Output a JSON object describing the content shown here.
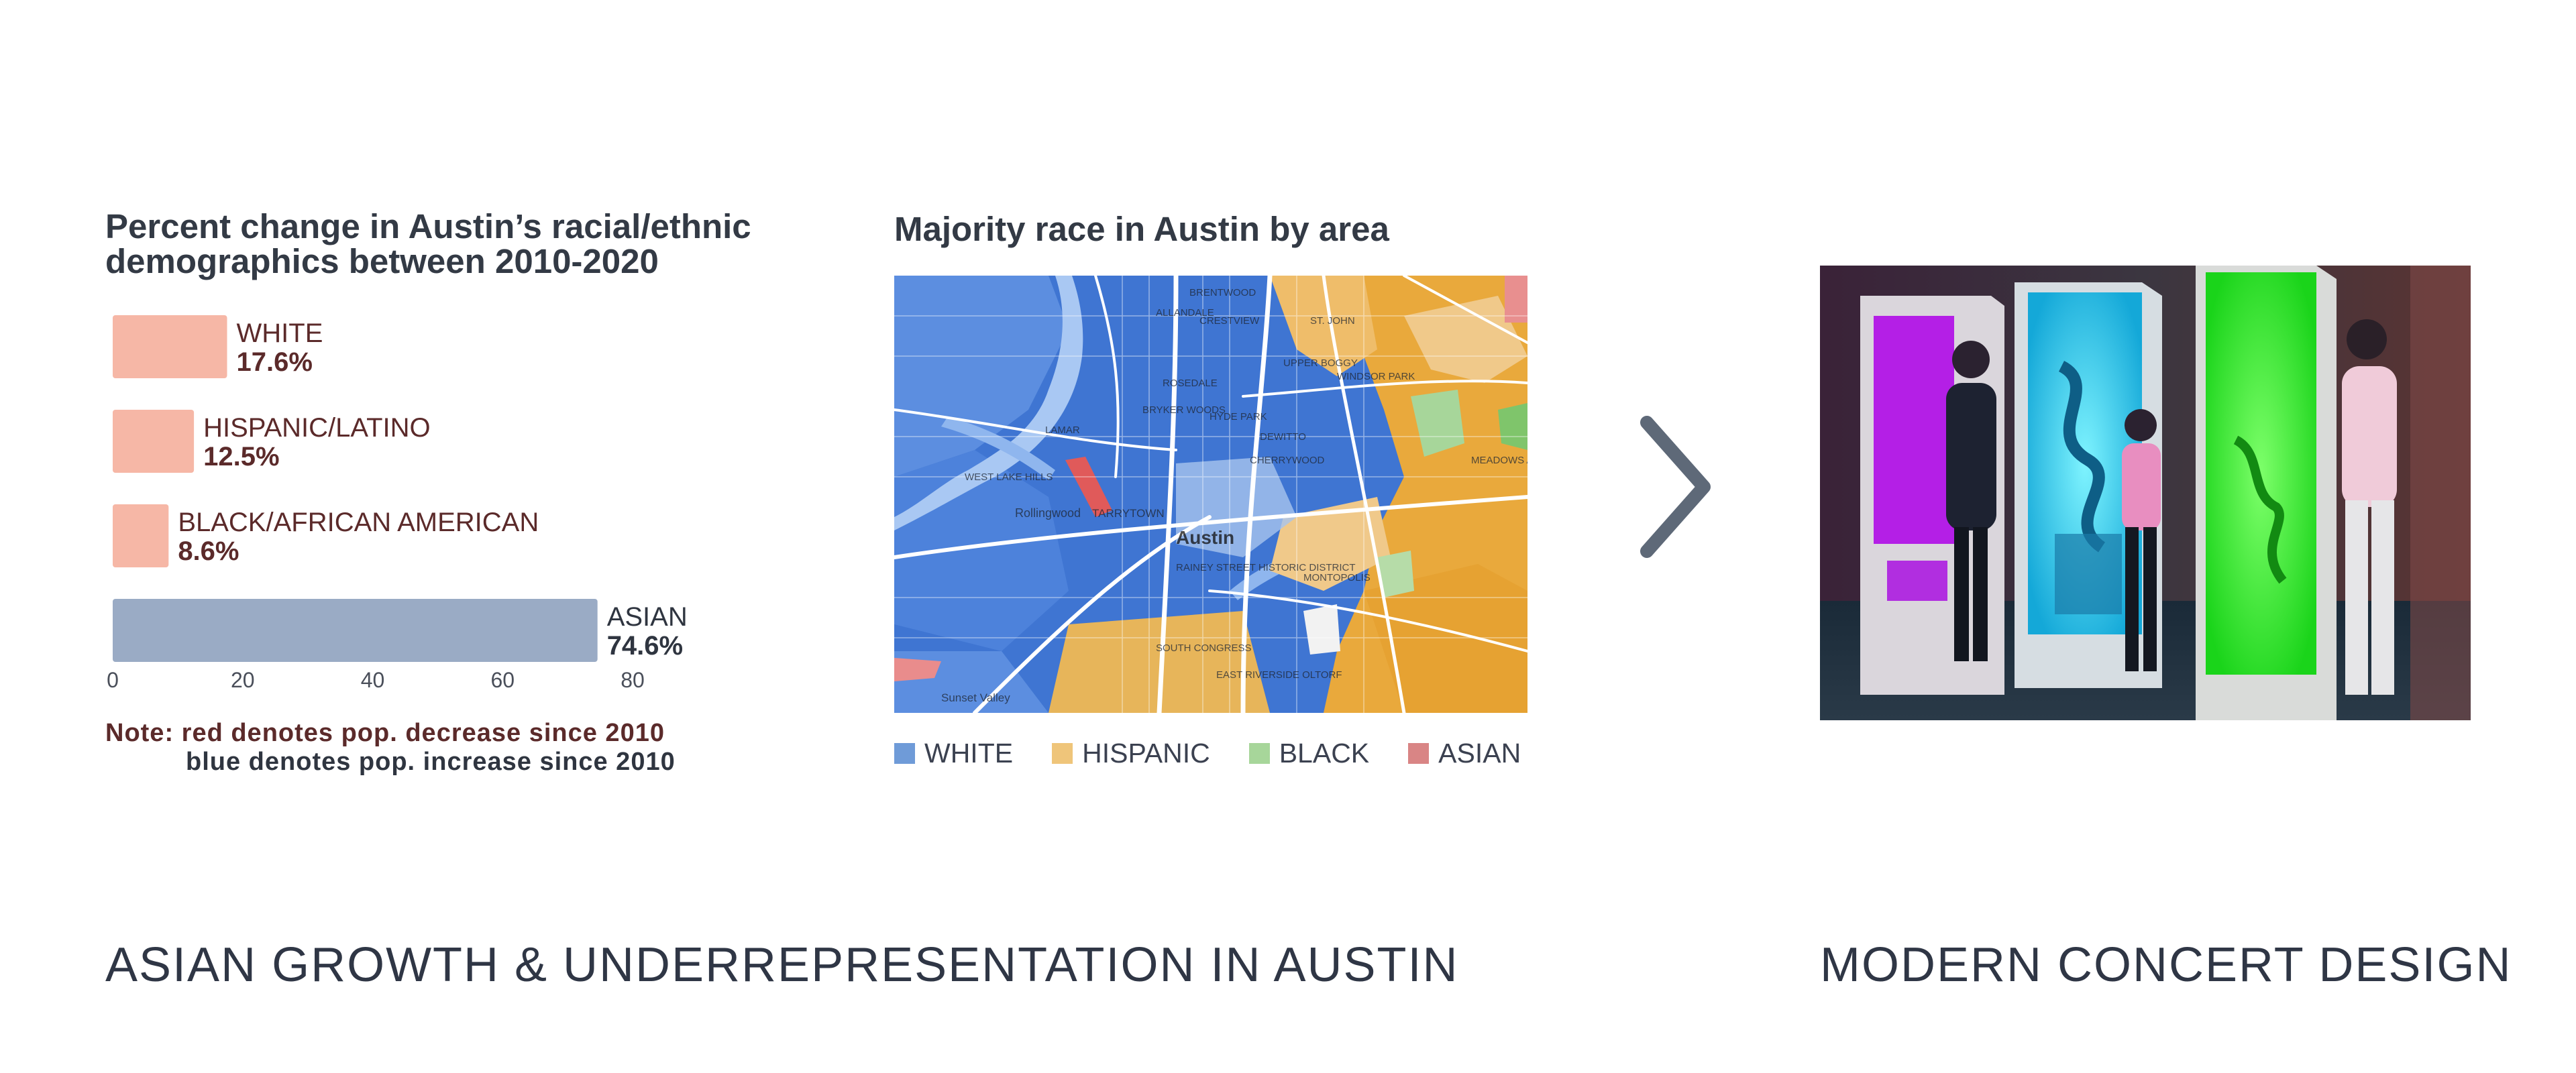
{
  "chart_data": {
    "type": "bar",
    "orientation": "horizontal",
    "title": "Percent change in Austin’s racial/ethnic demographics between 2010-2020",
    "categories": [
      "WHITE",
      "HISPANIC/LATINO",
      "BLACK/AFRICAN AMERICAN",
      "ASIAN"
    ],
    "values": [
      17.6,
      12.5,
      8.6,
      74.6
    ],
    "value_labels": [
      "17.6%",
      "12.5%",
      "8.6%",
      "74.6%"
    ],
    "bar_colors": [
      "#f6b7a6",
      "#f6b7a6",
      "#f6b7a6",
      "#9aabc5"
    ],
    "label_colors": [
      "#5b2a2a",
      "#5b2a2a",
      "#5b2a2a",
      "#2f3540"
    ],
    "xlim": [
      0,
      80
    ],
    "xticks": [
      0,
      20,
      40,
      60,
      80
    ],
    "grid": false,
    "legend": "none"
  },
  "note": {
    "line1": "Note: red denotes pop. decrease since 2010",
    "line2": "blue denotes pop. increase since 2010"
  },
  "map": {
    "title": "Majority race in Austin by area",
    "city_label": "Austin",
    "place_labels": [
      "BRENTWOOD",
      "CRESTVIEW",
      "ALLANDALE",
      "ST. JOHN",
      "ROSEDALE",
      "BRYKER WOODS",
      "HYDE PARK",
      "WINDSOR PARK",
      "UPPER BOGGY",
      "DEWITTO",
      "CHERRYWOOD",
      "MEADOWS AT TRINITY CROSSING",
      "WEST LAKE HILLS",
      "Rollingwood",
      "Austin",
      "RAINEY STREET HISTORIC DISTRICT",
      "SOUTH CONGRESS",
      "MONTOPOLIS",
      "EAST RIVERSIDE OLTORF",
      "Sunset Valley",
      "TARRYTOWN",
      "LAMAR"
    ],
    "legend": [
      {
        "label": "WHITE",
        "color": "#6f9bd8"
      },
      {
        "label": "HISPANIC",
        "color": "#efc57a"
      },
      {
        "label": "BLACK",
        "color": "#a7d69a"
      },
      {
        "label": "ASIAN",
        "color": "#d98585"
      }
    ],
    "colors": {
      "white": "#3d73d1",
      "hispanic": "#e9a93c",
      "black": "#7fc56b",
      "asian": "#e05a5a",
      "road": "#ffffff"
    }
  },
  "photo": {
    "description_icon": "photo-icon"
  },
  "captions": {
    "left": "ASIAN GROWTH & UNDERREPRESENTATION IN AUSTIN",
    "right": "MODERN CONCERT DESIGN"
  }
}
